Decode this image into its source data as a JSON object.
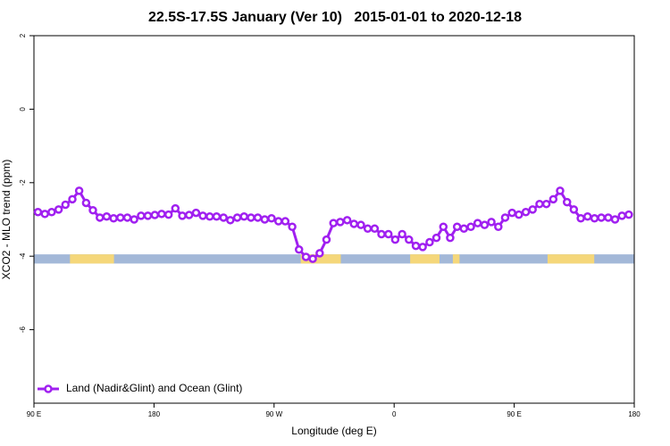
{
  "chart_data": {
    "type": "line",
    "title": "22.5S-17.5S January (Ver 10)   2015-01-01 to 2020-12-18",
    "x_label": "Longitude (deg E)",
    "y_label": "XCO2 - MLO trend (ppm)",
    "xlim": [
      90,
      540
    ],
    "ylim": [
      -8,
      2
    ],
    "xticks": [
      {
        "value": 90,
        "label": "90 E"
      },
      {
        "value": 180,
        "label": "180"
      },
      {
        "value": 270,
        "label": "90 W"
      },
      {
        "value": 360,
        "label": "0"
      },
      {
        "value": 450,
        "label": "90 E"
      },
      {
        "value": 540,
        "label": "180"
      }
    ],
    "yticks": [
      -6,
      -4,
      -2,
      0,
      2
    ],
    "legend": "bottom-left",
    "x": [
      93,
      98.2,
      103.3,
      108.5,
      113.6,
      118.8,
      123.9,
      129.1,
      134.2,
      139.4,
      144.5,
      149.7,
      154.8,
      160,
      165.1,
      170.3,
      175.4,
      180.6,
      185.7,
      190.9,
      196,
      201.2,
      206.3,
      211.5,
      216.6,
      221.8,
      226.9,
      232.1,
      237.2,
      242.4,
      247.5,
      252.7,
      257.8,
      263,
      268.1,
      273.3,
      278.4,
      283.6,
      288.7,
      293.9,
      299,
      304.2,
      309.3,
      314.5,
      319.6,
      324.8,
      329.9,
      335.1,
      340.2,
      345.4,
      350.5,
      355.7,
      360.8,
      366,
      371.1,
      376.3,
      381.4,
      386.6,
      391.7,
      396.9,
      402,
      407.2,
      412.3,
      417.5,
      422.6,
      427.8,
      432.9,
      438.1,
      443.2,
      448.4,
      453.5,
      458.7,
      463.8,
      469,
      474.1,
      479.3,
      484.4,
      489.6,
      494.7,
      499.9,
      505,
      510.2,
      515.3,
      520.5,
      525.6,
      530.8,
      535.9
    ],
    "series": [
      {
        "name": "Land (Nadir&Glint) and Ocean (Glint)",
        "color": "#a020f0",
        "values": [
          -2.8,
          -2.85,
          -2.8,
          -2.73,
          -2.6,
          -2.45,
          -2.22,
          -2.55,
          -2.75,
          -2.95,
          -2.92,
          -2.97,
          -2.95,
          -2.95,
          -3.0,
          -2.9,
          -2.9,
          -2.88,
          -2.85,
          -2.87,
          -2.7,
          -2.9,
          -2.88,
          -2.82,
          -2.9,
          -2.92,
          -2.92,
          -2.95,
          -3.02,
          -2.95,
          -2.92,
          -2.95,
          -2.95,
          -3.0,
          -2.97,
          -3.05,
          -3.05,
          -3.2,
          -3.82,
          -4.02,
          -4.07,
          -3.92,
          -3.55,
          -3.1,
          -3.07,
          -3.02,
          -3.12,
          -3.15,
          -3.25,
          -3.25,
          -3.4,
          -3.4,
          -3.55,
          -3.4,
          -3.55,
          -3.72,
          -3.75,
          -3.62,
          -3.5,
          -3.2,
          -3.5,
          -3.2,
          -3.25,
          -3.2,
          -3.1,
          -3.15,
          -3.07,
          -3.2,
          -2.95,
          -2.82,
          -2.87,
          -2.8,
          -2.73,
          -2.58,
          -2.58,
          -2.45,
          -2.22,
          -2.53,
          -2.73,
          -2.97,
          -2.92,
          -2.97,
          -2.95,
          -2.95,
          -3.0,
          -2.9,
          -2.87
        ]
      }
    ],
    "surface_strip": {
      "ylim": [
        -4.2,
        -3.95
      ],
      "ocean_color": "#a3b8d8",
      "land_color": "#f5d77a",
      "land": [
        [
          117,
          150
        ],
        [
          290,
          320
        ],
        [
          372,
          394
        ],
        [
          404,
          409
        ],
        [
          475,
          510
        ]
      ]
    }
  }
}
